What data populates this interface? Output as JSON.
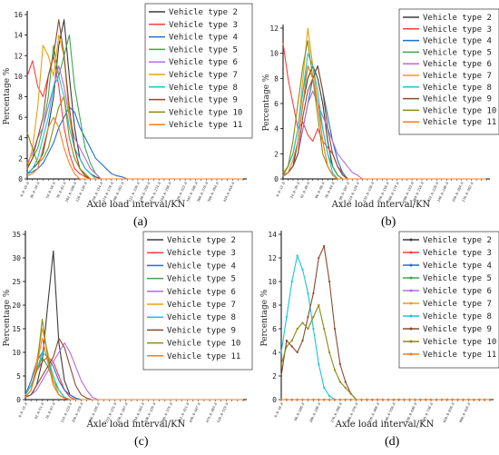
{
  "series_names": [
    "Vehicle type 2",
    "Vehicle type 3",
    "Vehicle type 4",
    "Vehicle type 5",
    "Vehicle type 6",
    "Vehicle type 7",
    "Vehicle type 8",
    "Vehicle type 9",
    "Vehicle type 10",
    "Vehicle type 11"
  ],
  "series_colors": [
    "#3a3a3a",
    "#ff3b3b",
    "#1f6fd1",
    "#3aa84a",
    "#b46be0",
    "#e8a00f",
    "#18c6d8",
    "#8b4a2a",
    "#8a8a12",
    "#ff7b1c"
  ],
  "chart_data": [
    {
      "type": "line",
      "panel_label": "(a)",
      "xlabel": "Axle load interval/KN",
      "ylabel": "Percentage %",
      "ylim": [
        0,
        16
      ],
      "yticks": [
        0,
        2,
        4,
        6,
        8,
        10,
        12,
        14,
        16
      ],
      "x_points": 42,
      "x_tick_labels": [
        "6.0-10.0",
        "30.0-34.0",
        "54.0-58.0",
        "78.0-82.0",
        "102.0-106.0",
        "126.0-130.0",
        "150.0-154.0",
        "174.0-178.0",
        "198.0-202.0",
        "222.0-226.0",
        "246.0-250.0",
        "270.0-274.0",
        "294.0-298.0",
        "318.0-322.0",
        "342.0-346.0",
        "366.0-370.0",
        "390.0-394.0",
        "414.0-418.0"
      ],
      "legend_position": "top-right",
      "series": [
        {
          "name": "Vehicle type 2",
          "values": [
            0.5,
            1,
            1.5,
            2.5,
            5,
            8,
            13,
            15.5,
            10,
            5,
            2,
            1,
            0.5,
            0.2
          ]
        },
        {
          "name": "Vehicle type 3",
          "values": [
            10,
            11.5,
            9,
            8,
            10,
            12,
            9,
            5,
            2.5,
            1,
            0.5,
            0.2
          ]
        },
        {
          "name": "Vehicle type 4",
          "values": [
            0.5,
            0.7,
            1,
            1.5,
            2.5,
            3.5,
            5,
            6,
            7,
            6.5,
            5,
            4,
            3,
            2,
            1.5,
            1,
            0.5,
            0.3,
            0.2
          ]
        },
        {
          "name": "Vehicle type 5",
          "values": [
            1,
            2,
            3,
            5,
            8,
            13,
            10,
            12,
            14,
            9,
            6,
            3,
            1.5,
            0.5
          ]
        },
        {
          "name": "Vehicle type 6",
          "values": [
            1.5,
            2.5,
            4,
            5,
            7,
            9,
            11,
            9,
            6,
            4,
            3,
            2,
            1,
            0.5
          ]
        },
        {
          "name": "Vehicle type 7",
          "values": [
            1,
            3,
            7,
            13,
            12,
            10,
            14,
            12,
            6,
            3,
            1,
            0.3
          ]
        },
        {
          "name": "Vehicle type 8",
          "values": [
            0.5,
            1,
            2,
            4,
            6,
            9,
            10,
            8,
            5,
            3,
            2,
            1,
            0.5
          ]
        },
        {
          "name": "Vehicle type 9",
          "values": [
            1,
            2,
            4,
            6,
            10,
            12,
            15.5,
            12,
            7,
            3,
            1,
            0.3
          ]
        },
        {
          "name": "Vehicle type 10",
          "values": [
            4.5,
            3,
            1.5,
            2,
            3,
            5,
            7,
            8,
            4,
            2,
            1,
            0.5
          ]
        },
        {
          "name": "Vehicle type 11",
          "values": [
            0.3,
            0.5,
            1,
            3,
            5,
            6,
            5,
            3,
            1.5,
            0.5
          ]
        }
      ]
    },
    {
      "type": "line",
      "panel_label": "(b)",
      "xlabel": "Axle load interval/KN",
      "ylabel": "Percentage %",
      "ylim": [
        0,
        12
      ],
      "yticks": [
        0,
        2,
        4,
        6,
        8,
        10,
        12
      ],
      "x_points": 42,
      "x_tick_labels": [
        "6.0-12.0",
        "24.0-30.0",
        "42.0-48.0",
        "60.0-66.0",
        "78.0-84.0",
        "96.0-102.0",
        "114.0-120.0",
        "132.0-138.0",
        "150.0-156.0",
        "168.0-174.0",
        "186.0-192.0",
        "204.0-210.0",
        "222.0-228.0",
        "240.0-246.0",
        "258.0-264.0",
        "276.0-282.0"
      ],
      "legend_position": "top-right",
      "series": [
        {
          "name": "Vehicle type 2",
          "values": [
            0.3,
            0.5,
            1,
            3,
            6,
            8,
            9,
            8,
            6,
            3,
            1,
            0.3
          ]
        },
        {
          "name": "Vehicle type 3",
          "values": [
            10.8,
            8,
            6,
            4,
            4.5,
            3.5,
            3,
            4,
            3,
            2.5,
            2,
            1,
            0.5
          ]
        },
        {
          "name": "Vehicle type 4",
          "values": [
            0.3,
            0.5,
            1,
            2,
            4,
            6,
            8,
            9,
            7,
            5,
            3,
            1.5,
            0.5
          ]
        },
        {
          "name": "Vehicle type 5",
          "values": [
            0.3,
            1,
            2,
            4,
            7,
            9,
            8,
            6,
            4,
            2,
            1,
            0.3
          ]
        },
        {
          "name": "Vehicle type 6",
          "values": [
            0.2,
            0.5,
            1,
            2,
            4,
            6,
            7,
            6,
            5,
            4,
            3,
            2,
            1.5,
            1,
            0.5,
            0.3
          ]
        },
        {
          "name": "Vehicle type 7",
          "values": [
            0.5,
            1,
            2,
            4,
            8,
            12,
            9,
            6,
            3,
            1,
            0.3
          ]
        },
        {
          "name": "Vehicle type 8",
          "values": [
            0.3,
            1,
            2,
            4,
            7,
            10,
            9,
            7,
            4,
            2,
            0.5
          ]
        },
        {
          "name": "Vehicle type 9",
          "values": [
            0.2,
            0.5,
            1,
            2,
            5,
            7,
            8,
            9,
            7,
            4,
            2,
            1,
            0.3
          ]
        },
        {
          "name": "Vehicle type 10",
          "values": [
            0.3,
            1,
            3,
            6,
            9,
            11,
            8,
            5,
            2,
            1,
            0.3
          ]
        },
        {
          "name": "Vehicle type 11",
          "values": [
            0.2,
            0.5,
            1.5,
            3,
            6,
            9,
            8,
            6,
            3,
            1,
            0.3
          ]
        }
      ]
    },
    {
      "type": "line",
      "panel_label": "(c)",
      "xlabel": "Axle load interval/KN",
      "ylabel": "Percentage %",
      "ylim": [
        0,
        35
      ],
      "yticks": [
        0,
        5,
        10,
        15,
        20,
        25,
        30,
        35
      ],
      "x_points": 40,
      "x_tick_labels": [
        "6.0-15.0",
        "42.0-51.0",
        "78.0-87.0",
        "114.0-123.0",
        "150.0-159.0",
        "186.0-195.0",
        "222.0-231.0",
        "258.0-267.0",
        "294.0-303.0",
        "330.0-339.0",
        "366.0-375.0",
        "402.0-411.0",
        "438.0-447.0",
        "474.0-483.0",
        "510.0-519.0"
      ],
      "legend_position": "top-right",
      "series": [
        {
          "name": "Vehicle type 2",
          "values": [
            0.5,
            1,
            3,
            8,
            20,
            31.5,
            12,
            4,
            1,
            0.3
          ]
        },
        {
          "name": "Vehicle type 3",
          "values": [
            1,
            3,
            6,
            8,
            9,
            8,
            5,
            2,
            0.5
          ]
        },
        {
          "name": "Vehicle type 4",
          "values": [
            1,
            4,
            8,
            10,
            9,
            7,
            4,
            2,
            1,
            0.3
          ]
        },
        {
          "name": "Vehicle type 5",
          "values": [
            1,
            3,
            6,
            9,
            7,
            4,
            2,
            0.5
          ]
        },
        {
          "name": "Vehicle type 6",
          "values": [
            0.5,
            1,
            2,
            4,
            6,
            8,
            10,
            12,
            10,
            7,
            4,
            2,
            0.5
          ]
        },
        {
          "name": "Vehicle type 7",
          "values": [
            0.5,
            2,
            8,
            15,
            10,
            4,
            1,
            0.3
          ]
        },
        {
          "name": "Vehicle type 8",
          "values": [
            1,
            3,
            6,
            10,
            9,
            5,
            2,
            0.5
          ]
        },
        {
          "name": "Vehicle type 9",
          "values": [
            0.5,
            1,
            3,
            5,
            7,
            9,
            13,
            11,
            7,
            3,
            1,
            0.3
          ]
        },
        {
          "name": "Vehicle type 10",
          "values": [
            0.5,
            2,
            6,
            17,
            9,
            3,
            1,
            0.3
          ]
        },
        {
          "name": "Vehicle type 11",
          "values": [
            0.5,
            2,
            7,
            13,
            8,
            3,
            1,
            0.3
          ]
        }
      ]
    },
    {
      "type": "line",
      "panel_label": "(d)",
      "xlabel": "Axle load interval/KN",
      "ylabel": "Percentage %",
      "ylim": [
        0,
        14
      ],
      "yticks": [
        0,
        2,
        4,
        6,
        8,
        10,
        12,
        14
      ],
      "x_points": 40,
      "x_tick_labels": [
        "6.0-16.0",
        "96.0-106.0",
        "186.0-196.0",
        "276.0-286.0",
        "366.0-376.0",
        "456.0-466.0",
        "546.0-556.0",
        "636.0-646.0",
        "726.0-736.0",
        "816.0-826.0",
        "906.0-916.0"
      ],
      "legend_position": "top-right",
      "series": [
        {
          "name": "Vehicle type 2",
          "values": [
            0,
            0,
            0,
            0,
            0
          ]
        },
        {
          "name": "Vehicle type 3",
          "values": [
            0,
            0,
            0,
            0,
            0
          ]
        },
        {
          "name": "Vehicle type 4",
          "values": [
            0,
            0,
            0,
            0,
            0
          ]
        },
        {
          "name": "Vehicle type 5",
          "values": [
            0,
            0,
            0,
            0,
            0
          ]
        },
        {
          "name": "Vehicle type 6",
          "values": [
            0,
            0,
            0,
            0,
            0
          ]
        },
        {
          "name": "Vehicle type 7",
          "values": [
            0,
            0,
            0,
            0,
            0
          ]
        },
        {
          "name": "Vehicle type 8",
          "values": [
            4,
            7,
            10,
            12.2,
            11,
            9,
            6,
            3,
            1,
            0.3
          ]
        },
        {
          "name": "Vehicle type 9",
          "values": [
            2,
            5,
            4.5,
            4,
            5,
            7,
            9,
            12,
            13,
            10,
            6,
            3,
            1.5,
            0.5
          ]
        },
        {
          "name": "Vehicle type 10",
          "values": [
            3,
            4.5,
            5,
            6,
            6.5,
            6,
            7,
            8,
            6,
            4,
            2.5,
            1.5,
            1,
            0.5
          ]
        },
        {
          "name": "Vehicle type 11",
          "values": [
            0,
            0,
            0,
            0,
            0
          ]
        }
      ]
    }
  ]
}
